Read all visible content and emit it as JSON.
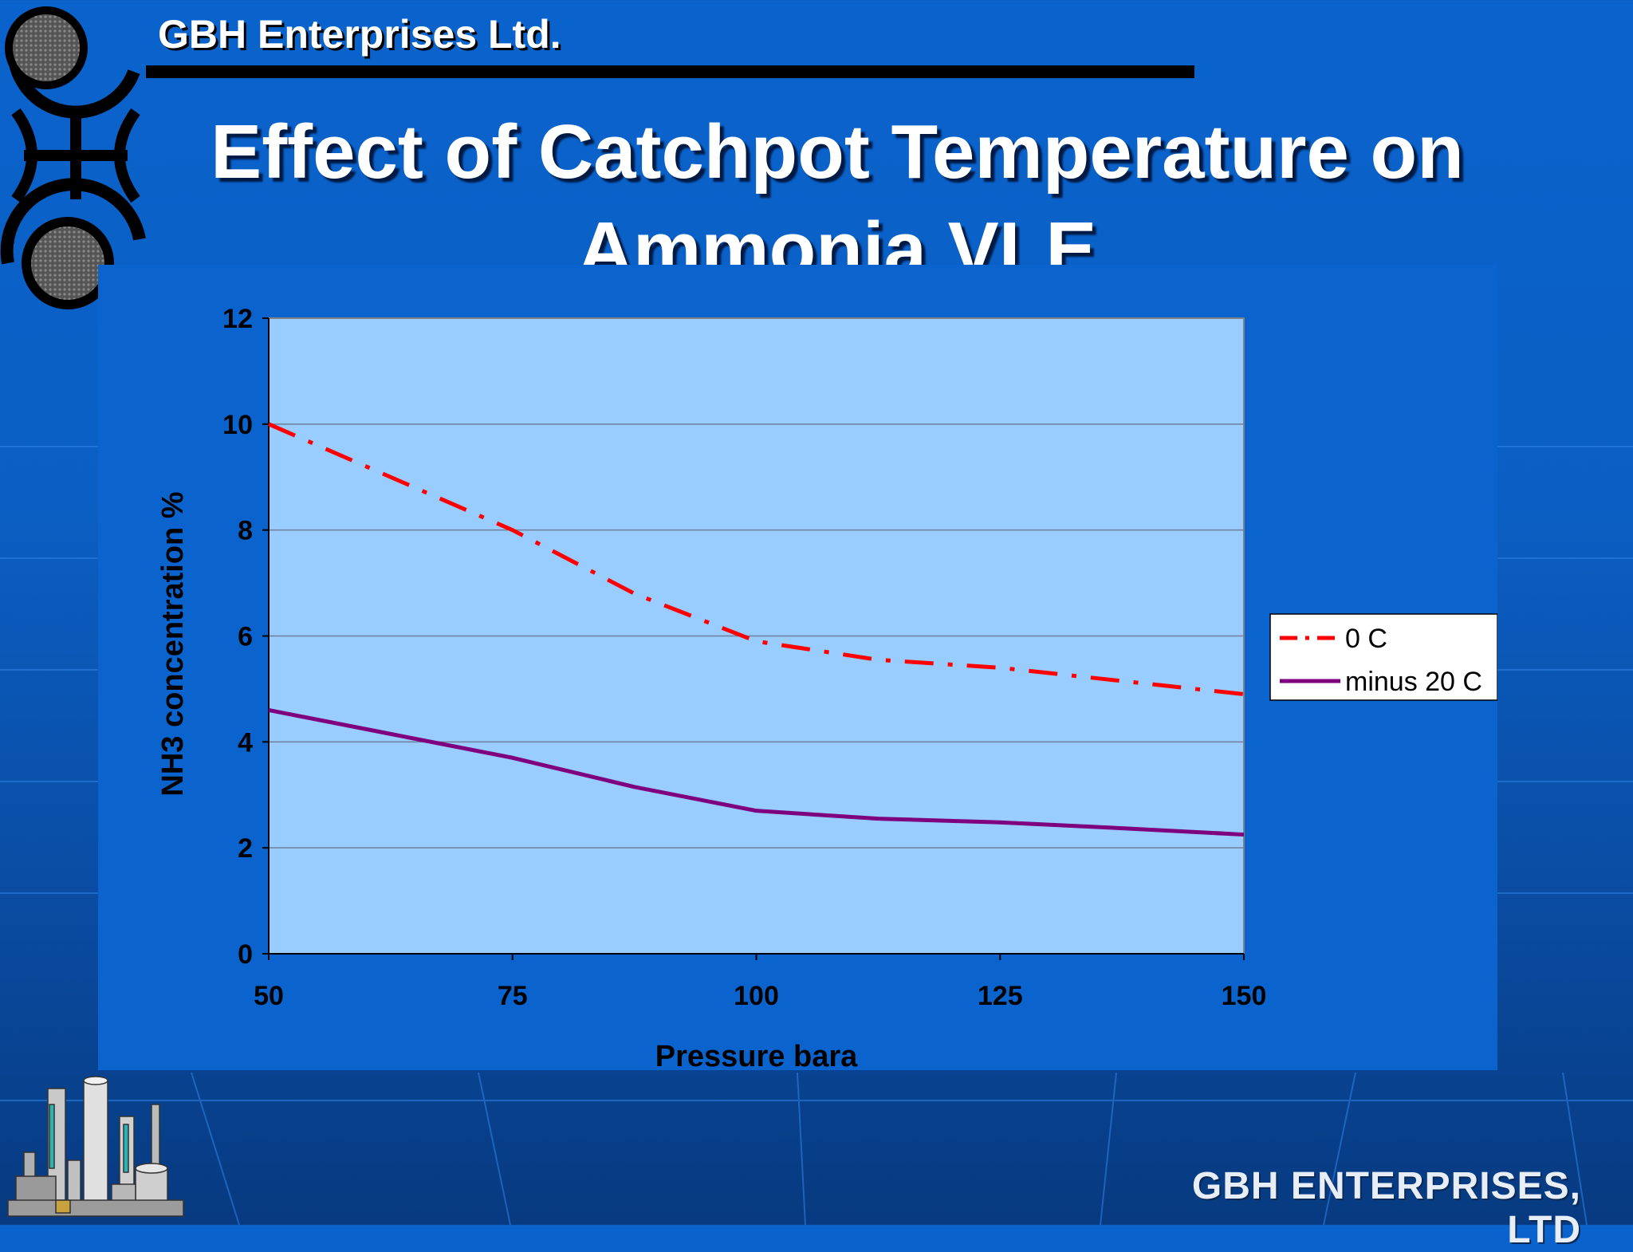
{
  "header": {
    "company": "GBH Enterprises Ltd."
  },
  "slide": {
    "title_line1": "Effect of Catchpot Temperature on",
    "title_line2": "Ammonia VLE"
  },
  "footer": {
    "brand": "GBH ENTERPRISES, LTD"
  },
  "colors": {
    "background": "#0a5fc6",
    "plot_area": "#99ccff",
    "series_0c": "#ff0000",
    "series_minus20c": "#7f007f"
  },
  "chart_data": {
    "type": "line",
    "title": "",
    "xlabel": "Pressure bara",
    "ylabel": "NH3 concentration %",
    "xlim": [
      50,
      150
    ],
    "ylim": [
      0,
      12
    ],
    "x_ticks": [
      "50",
      "75",
      "100",
      "125",
      "150"
    ],
    "y_ticks": [
      "0",
      "2",
      "4",
      "6",
      "8",
      "10",
      "12"
    ],
    "grid": "horizontal",
    "legend_position": "right",
    "series": [
      {
        "name": "0 C",
        "style": "dash-dot",
        "color": "#ff0000",
        "x": [
          50,
          62.5,
          75,
          87.5,
          100,
          112.5,
          125,
          137.5,
          150
        ],
        "y": [
          10.0,
          9.0,
          8.0,
          6.8,
          5.9,
          5.55,
          5.4,
          5.15,
          4.9
        ]
      },
      {
        "name": "minus 20 C",
        "style": "solid",
        "color": "#7f007f",
        "x": [
          50,
          62.5,
          75,
          87.5,
          100,
          112.5,
          125,
          137.5,
          150
        ],
        "y": [
          4.6,
          4.15,
          3.7,
          3.15,
          2.7,
          2.55,
          2.48,
          2.37,
          2.25
        ]
      }
    ]
  }
}
